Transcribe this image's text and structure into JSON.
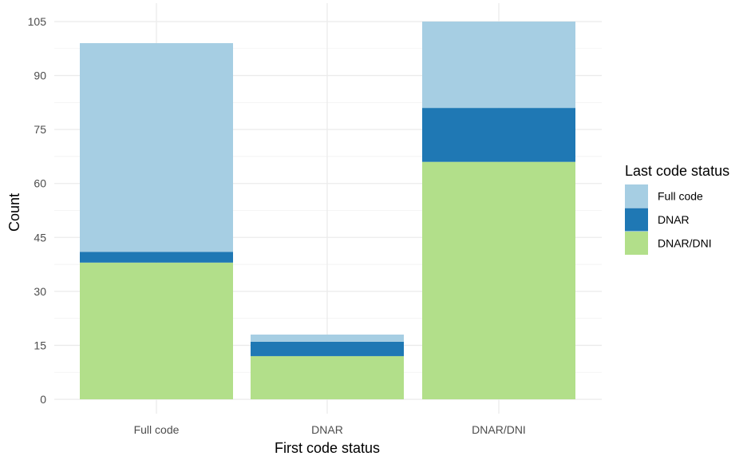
{
  "chart_data": {
    "type": "bar",
    "stacked": true,
    "title": "",
    "xlabel": "First code status",
    "ylabel": "Count",
    "categories": [
      "Full code",
      "DNAR",
      "DNAR/DNI"
    ],
    "series": [
      {
        "name": "DNAR/DNI",
        "color": "#b2df8a",
        "values": [
          38,
          12,
          66
        ]
      },
      {
        "name": "DNAR",
        "color": "#1f78b4",
        "values": [
          3,
          4,
          15
        ]
      },
      {
        "name": "Full code",
        "color": "#a6cee3",
        "values": [
          58,
          2,
          24
        ]
      }
    ],
    "ylim": [
      0,
      105
    ],
    "yticks": [
      0,
      15,
      30,
      45,
      60,
      75,
      90,
      105
    ],
    "grid": true,
    "legend": {
      "title": "Last code status",
      "position": "right",
      "entries": [
        "Full code",
        "DNAR",
        "DNAR/DNI"
      ]
    }
  }
}
